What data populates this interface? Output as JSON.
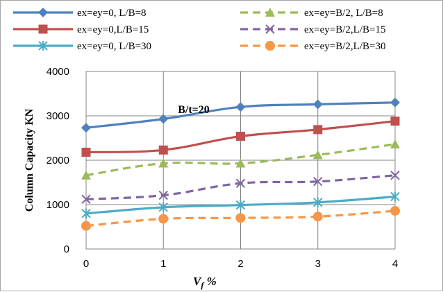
{
  "chart_data": {
    "type": "line",
    "title": "",
    "annotation": "B/t=20",
    "ylabel": "Column Capacity KN",
    "xlabel_main": "V",
    "xlabel_sub": "f",
    "xlabel_suffix": " %",
    "x": [
      0,
      1,
      2,
      3,
      4
    ],
    "xlim": [
      0,
      4
    ],
    "ylim": [
      0,
      4000
    ],
    "yticks": [
      0,
      1000,
      2000,
      3000,
      4000
    ],
    "grid": true,
    "legend_position": "top",
    "series": [
      {
        "name": "ex=ey=0, L/B=8",
        "values": [
          2730,
          2930,
          3200,
          3260,
          3300
        ],
        "color": "#4f81bd",
        "marker": "diamond",
        "dash": "solid"
      },
      {
        "name": "ex=ey=B/2, L/B=8",
        "values": [
          1660,
          1930,
          1930,
          2120,
          2360
        ],
        "color": "#9bbb59",
        "marker": "triangle",
        "dash": "dashed"
      },
      {
        "name": "ex=ey=0,L/B=15",
        "values": [
          2180,
          2230,
          2540,
          2690,
          2880
        ],
        "color": "#c0504d",
        "marker": "square",
        "dash": "solid"
      },
      {
        "name": "ex=ey=B/2,L/B=15",
        "values": [
          1120,
          1210,
          1480,
          1520,
          1660
        ],
        "color": "#8064a2",
        "marker": "x",
        "dash": "dashed"
      },
      {
        "name": "ex=ey=0, L/B=30",
        "values": [
          800,
          940,
          990,
          1050,
          1180
        ],
        "color": "#4bacc6",
        "marker": "star",
        "dash": "solid"
      },
      {
        "name": "ex=ey=B/2,L/B=30",
        "values": [
          520,
          680,
          700,
          730,
          860
        ],
        "color": "#f79646",
        "marker": "circle",
        "dash": "dashed"
      }
    ]
  }
}
